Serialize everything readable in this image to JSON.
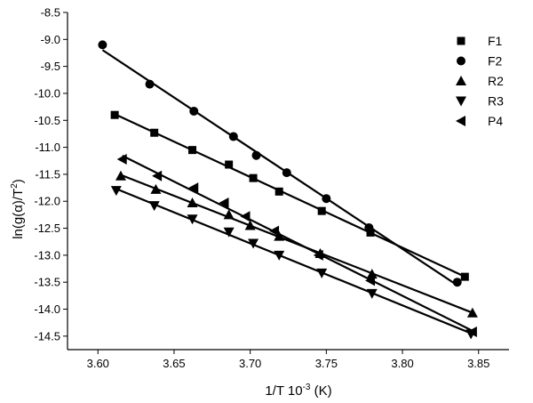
{
  "chart_data": {
    "type": "scatter",
    "title": "",
    "xlabel": "1/T 10",
    "xlabel_sup": "-3",
    "xlabel_unit": " (K)",
    "ylabel": "ln(g(α)/T",
    "ylabel_sup": "2",
    "ylabel_close": ")",
    "xlim": [
      3.58,
      3.87
    ],
    "ylim": [
      -14.75,
      -8.5
    ],
    "xticks": [
      3.6,
      3.65,
      3.7,
      3.75,
      3.8,
      3.85
    ],
    "xtick_labels": [
      "3.60",
      "3.65",
      "3.70",
      "3.75",
      "3.80",
      "3.85"
    ],
    "yticks": [
      -8.5,
      -9.0,
      -9.5,
      -10.0,
      -10.5,
      -11.0,
      -11.5,
      -12.0,
      -12.5,
      -13.0,
      -13.5,
      -14.0,
      -14.5
    ],
    "ytick_labels": [
      "-8.5",
      "-9.0",
      "-9.5",
      "-10.0",
      "-10.5",
      "-11.0",
      "-11.5",
      "-12.0",
      "-12.5",
      "-13.0",
      "-13.5",
      "-14.0",
      "-14.5"
    ],
    "grid": false,
    "legend_position": "top-right",
    "series": [
      {
        "name": "F1",
        "marker": "square",
        "x": [
          3.611,
          3.637,
          3.662,
          3.686,
          3.702,
          3.719,
          3.747,
          3.779,
          3.841
        ],
        "y": [
          -10.4,
          -10.73,
          -11.05,
          -11.32,
          -11.57,
          -11.82,
          -12.18,
          -12.58,
          -13.4
        ]
      },
      {
        "name": "F2",
        "marker": "circle",
        "x": [
          3.603,
          3.634,
          3.663,
          3.689,
          3.704,
          3.724,
          3.75,
          3.778,
          3.836
        ],
        "y": [
          -9.1,
          -9.83,
          -10.33,
          -10.8,
          -11.15,
          -11.47,
          -11.95,
          -12.49,
          -13.5
        ]
      },
      {
        "name": "R2",
        "marker": "triangle-up",
        "x": [
          3.615,
          3.638,
          3.662,
          3.686,
          3.7,
          3.719,
          3.746,
          3.78,
          3.846
        ],
        "y": [
          -11.53,
          -11.78,
          -12.03,
          -12.25,
          -12.45,
          -12.65,
          -12.97,
          -13.35,
          -14.07
        ]
      },
      {
        "name": "R3",
        "marker": "triangle-down",
        "x": [
          3.612,
          3.637,
          3.662,
          3.686,
          3.702,
          3.719,
          3.747,
          3.78,
          3.845
        ],
        "y": [
          -11.8,
          -12.08,
          -12.33,
          -12.57,
          -12.78,
          -13.0,
          -13.33,
          -13.71,
          -14.46
        ]
      },
      {
        "name": "P4",
        "marker": "triangle-left",
        "x": [
          3.616,
          3.639,
          3.663,
          3.683,
          3.697,
          3.716,
          3.745,
          3.779,
          3.846
        ],
        "y": [
          -11.22,
          -11.53,
          -11.75,
          -12.03,
          -12.28,
          -12.55,
          -13.0,
          -13.47,
          -14.42
        ]
      }
    ]
  }
}
